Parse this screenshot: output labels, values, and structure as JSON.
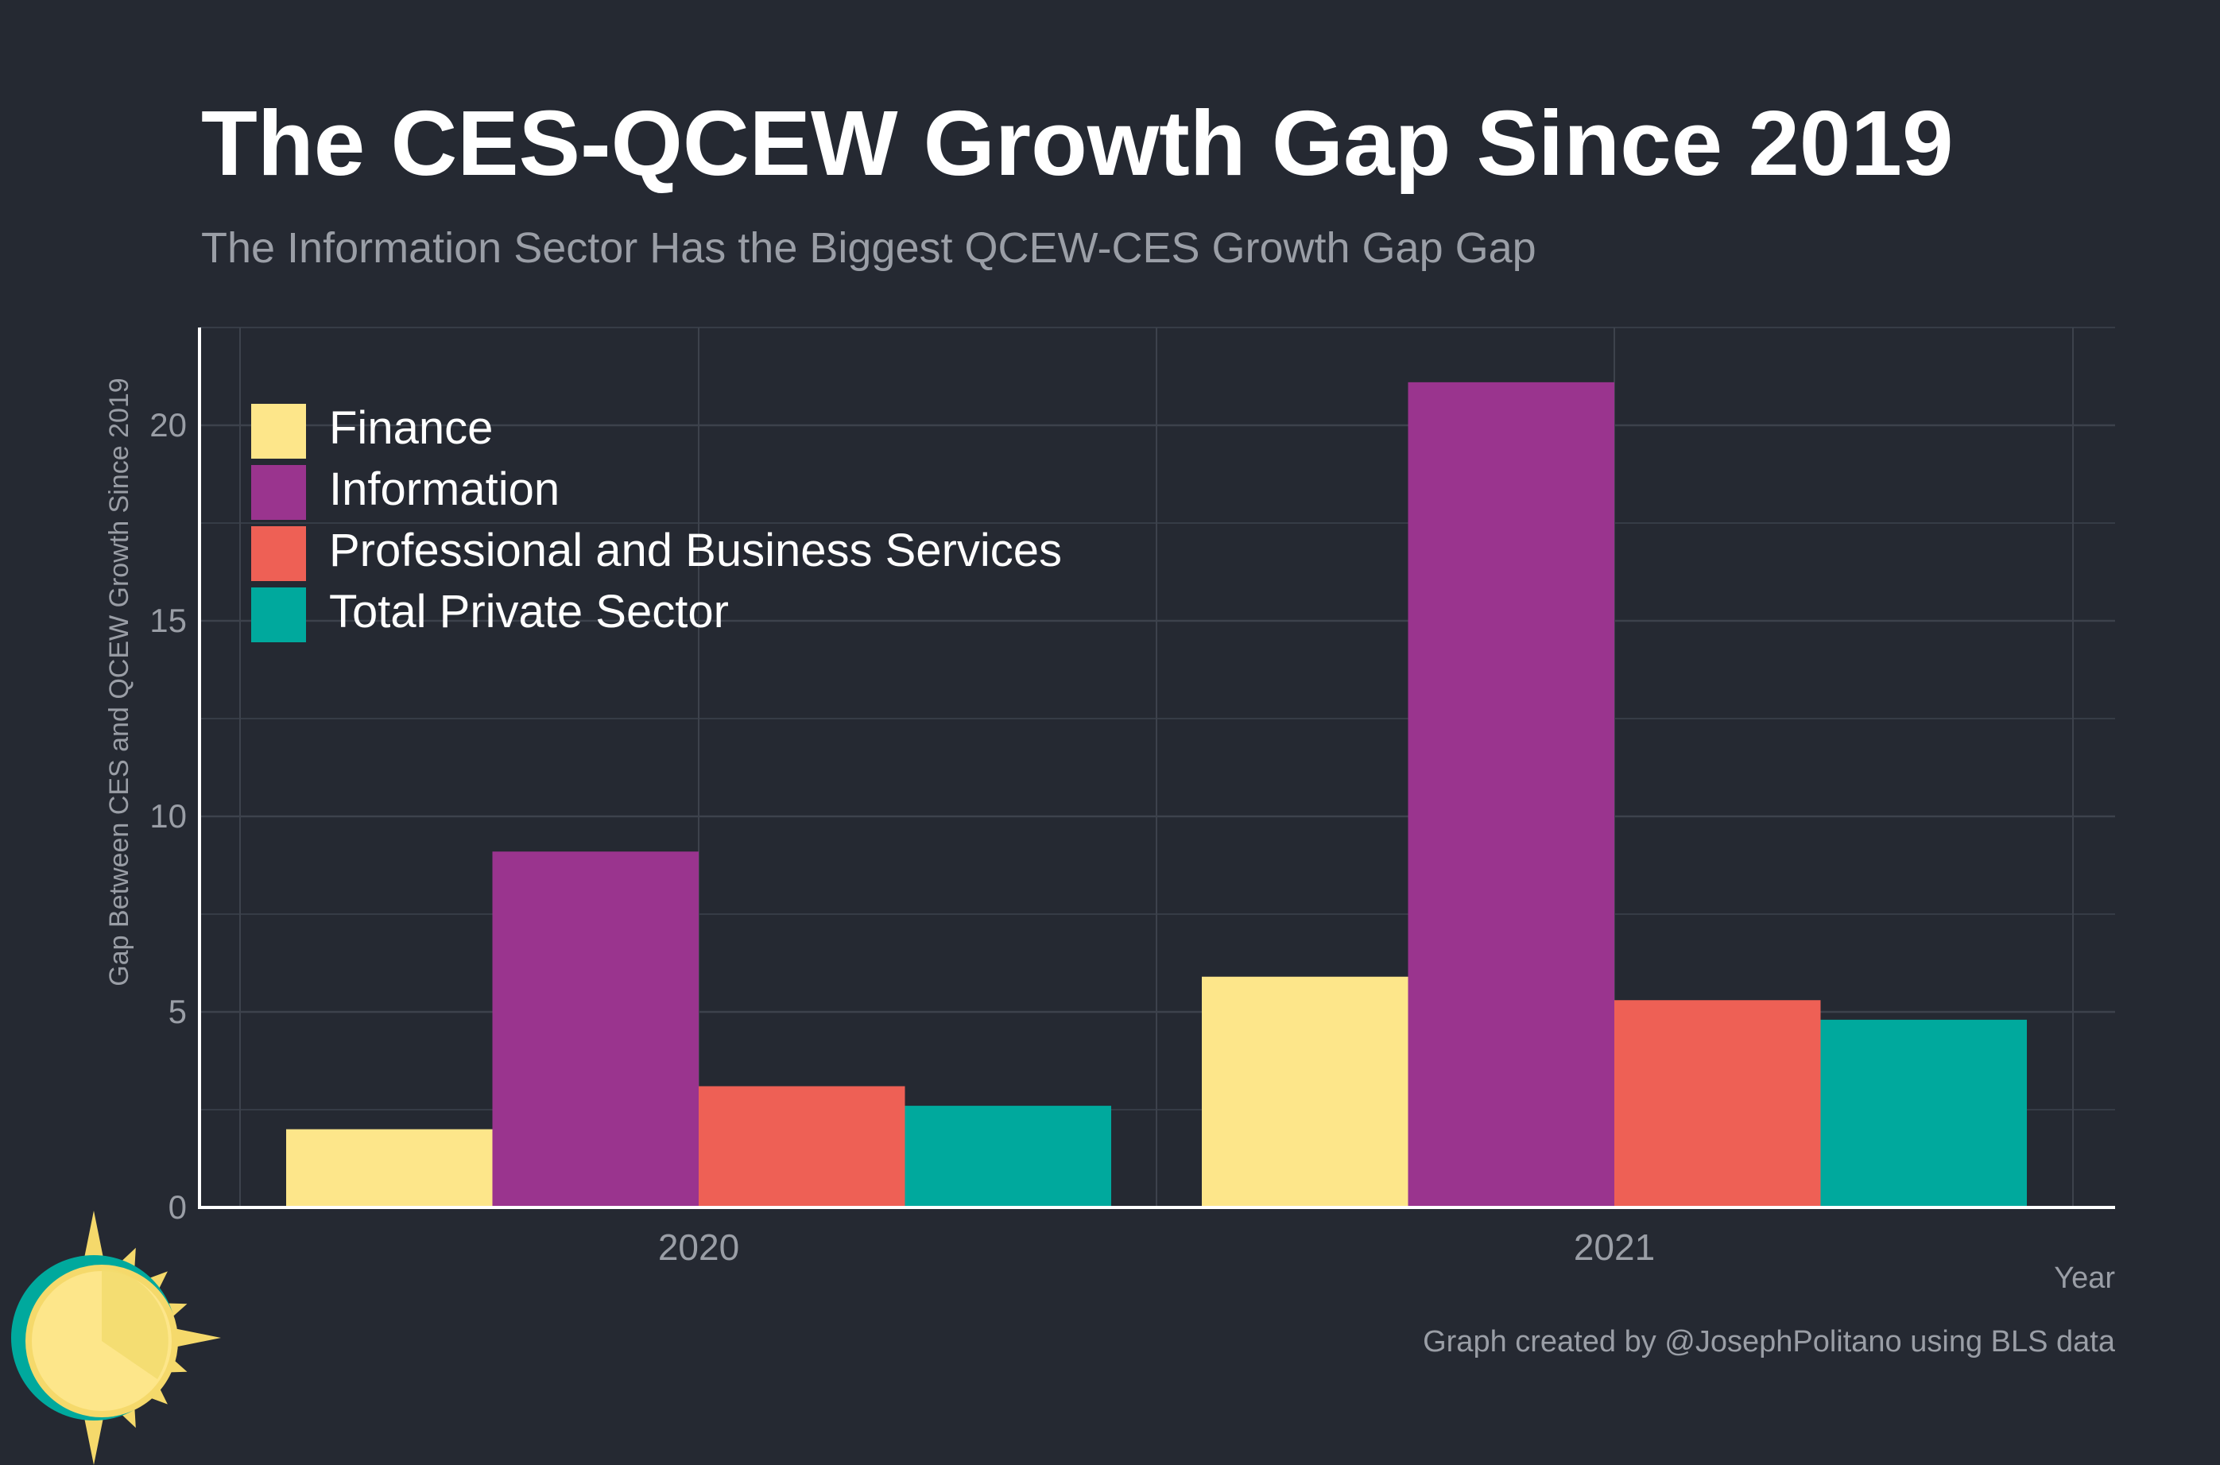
{
  "colors": {
    "background": "#252932",
    "grid": "#3d424c",
    "axis": "#ffffff",
    "muted_text": "#9a9ea6",
    "logo_sun": "#f5d96b",
    "logo_sun_inner": "#fde68a",
    "logo_ring": "#00a99d"
  },
  "logo": {
    "icon": "sun-logo-icon"
  },
  "chart_data": {
    "type": "bar",
    "title": "The CES-QCEW Growth Gap Since 2019",
    "subtitle": "The Information Sector Has the Biggest QCEW-CES Growth Gap Gap",
    "xlabel": "Year",
    "ylabel": "Gap Between CES and QCEW Growth Since 2019",
    "categories": [
      "2020",
      "2021"
    ],
    "ylim": [
      0,
      22.5
    ],
    "yticks": [
      "0",
      "5",
      "10",
      "15",
      "20"
    ],
    "grid": true,
    "legend_position": "top-left",
    "series": [
      {
        "name": "Finance",
        "color": "#fde68a",
        "values": [
          2.0,
          5.9
        ]
      },
      {
        "name": "Information",
        "color": "#9a348e",
        "values": [
          9.1,
          21.1
        ]
      },
      {
        "name": "Professional and Business Services",
        "color": "#ee6055",
        "values": [
          3.1,
          5.3
        ]
      },
      {
        "name": "Total Private Sector",
        "color": "#00a99d",
        "values": [
          2.6,
          4.8
        ]
      }
    ],
    "caption": "Graph created by @JosephPolitano using BLS data"
  }
}
